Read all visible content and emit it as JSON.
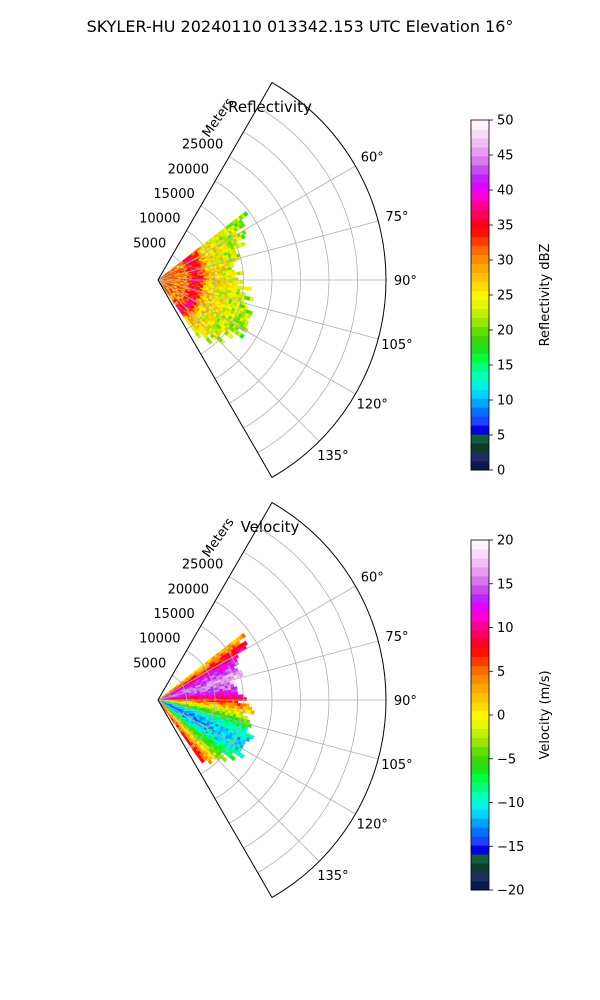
{
  "figure": {
    "suptitle": "SKYLER-HU  20240110  013342.153 UTC Elevation 16°"
  },
  "chart_data": [
    {
      "type": "heatmap",
      "projection": "polar-sector",
      "title": "Reflectivity",
      "range_label": "Meters",
      "azimuth_range_deg": [
        30,
        150
      ],
      "range_lim": [
        0,
        40000
      ],
      "range_ticks": [
        5000,
        10000,
        15000,
        20000,
        25000
      ],
      "range_tick_labels": [
        "5000",
        "10000",
        "15000",
        "20000",
        "25000"
      ],
      "azimuth_ticks": [
        60,
        75,
        90,
        105,
        120,
        135
      ],
      "azimuth_tick_labels": [
        "60°",
        "75°",
        "90°",
        "105°",
        "120°",
        "135°"
      ],
      "grid": true,
      "data_extent": {
        "azimuth_deg": [
          52,
          145
        ],
        "range_m_max": 22000
      },
      "colorbar": {
        "label": "Reflectivity dBZ",
        "vmin": 0,
        "vmax": 50,
        "ticks": [
          0,
          5,
          10,
          15,
          20,
          25,
          30,
          35,
          40,
          45,
          50
        ],
        "tick_labels": [
          "0",
          "5",
          "10",
          "15",
          "20",
          "25",
          "30",
          "35",
          "40",
          "45",
          "50"
        ],
        "colors": [
          "#0b1a4a",
          "#1c2e63",
          "#0d3e2c",
          "#155c3e",
          "#0000e0",
          "#1a44ff",
          "#0070ff",
          "#00a4ff",
          "#00d4ff",
          "#00f5e0",
          "#00ffb8",
          "#00ff7a",
          "#00ff3c",
          "#1de51d",
          "#3fd70a",
          "#5fe000",
          "#9ae600",
          "#c4f000",
          "#e4f600",
          "#fff500",
          "#ffdc00",
          "#ffc200",
          "#ffa800",
          "#ff8a00",
          "#ff6a00",
          "#ff3c00",
          "#ff1000",
          "#ff0022",
          "#ff005a",
          "#ff0096",
          "#ff00d4",
          "#e400ff",
          "#bd22ff",
          "#c74de8",
          "#d978ec",
          "#e79cf2",
          "#f0bef6",
          "#f8dcfa",
          "#fff2ff"
        ]
      }
    },
    {
      "type": "heatmap",
      "projection": "polar-sector",
      "title": "Velocity",
      "range_label": "Meters",
      "azimuth_range_deg": [
        30,
        150
      ],
      "range_lim": [
        0,
        40000
      ],
      "range_ticks": [
        5000,
        10000,
        15000,
        20000,
        25000
      ],
      "range_tick_labels": [
        "5000",
        "10000",
        "15000",
        "20000",
        "25000"
      ],
      "azimuth_ticks": [
        60,
        75,
        90,
        105,
        120,
        135
      ],
      "azimuth_tick_labels": [
        "60°",
        "75°",
        "90°",
        "105°",
        "120°",
        "135°"
      ],
      "grid": true,
      "data_extent": {
        "azimuth_deg": [
          52,
          145
        ],
        "range_m_max": 22000
      },
      "colorbar": {
        "label": "Velocity (m/s)",
        "vmin": -20,
        "vmax": 20,
        "ticks": [
          -20,
          -15,
          -10,
          -5,
          0,
          5,
          10,
          15,
          20
        ],
        "tick_labels": [
          "−20",
          "−15",
          "−10",
          "−5",
          "0",
          "5",
          "10",
          "15",
          "20"
        ],
        "colors": [
          "#0b1a4a",
          "#1c2e63",
          "#0d3e2c",
          "#155c3e",
          "#0000e0",
          "#1a44ff",
          "#0070ff",
          "#00a4ff",
          "#00d4ff",
          "#00f5e0",
          "#00ffb8",
          "#00ff7a",
          "#00ff3c",
          "#1de51d",
          "#3fd70a",
          "#5fe000",
          "#9ae600",
          "#c4f000",
          "#e4f600",
          "#fff500",
          "#ffdc00",
          "#ffc200",
          "#ffa800",
          "#ff8a00",
          "#ff6a00",
          "#ff3c00",
          "#ff1000",
          "#ff0022",
          "#ff005a",
          "#ff0096",
          "#ff00d4",
          "#e400ff",
          "#bd22ff",
          "#c74de8",
          "#d978ec",
          "#e79cf2",
          "#f0bef6",
          "#f8dcfa",
          "#fff2ff"
        ]
      }
    }
  ]
}
